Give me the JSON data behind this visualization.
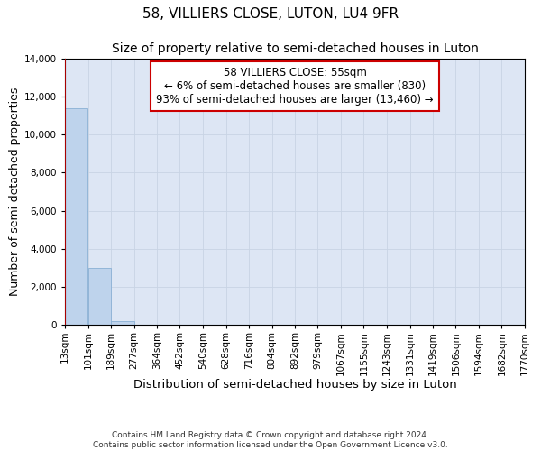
{
  "title": "58, VILLIERS CLOSE, LUTON, LU4 9FR",
  "subtitle": "Size of property relative to semi-detached houses in Luton",
  "xlabel": "Distribution of semi-detached houses by size in Luton",
  "ylabel": "Number of semi-detached properties",
  "footnote1": "Contains HM Land Registry data © Crown copyright and database right 2024.",
  "footnote2": "Contains public sector information licensed under the Open Government Licence v3.0.",
  "bin_edges": [
    13,
    101,
    189,
    277,
    364,
    452,
    540,
    628,
    716,
    804,
    892,
    979,
    1067,
    1155,
    1243,
    1331,
    1419,
    1506,
    1594,
    1682,
    1770
  ],
  "bin_labels": [
    "13sqm",
    "101sqm",
    "189sqm",
    "277sqm",
    "364sqm",
    "452sqm",
    "540sqm",
    "628sqm",
    "716sqm",
    "804sqm",
    "892sqm",
    "979sqm",
    "1067sqm",
    "1155sqm",
    "1243sqm",
    "1331sqm",
    "1419sqm",
    "1506sqm",
    "1594sqm",
    "1682sqm",
    "1770sqm"
  ],
  "bar_heights": [
    11400,
    3000,
    200,
    0,
    0,
    0,
    0,
    0,
    0,
    0,
    0,
    0,
    0,
    0,
    0,
    0,
    0,
    0,
    0,
    0
  ],
  "bar_color": "#bed3ec",
  "bar_edgecolor": "#8ab0d4",
  "ylim": [
    0,
    14000
  ],
  "yticks": [
    0,
    2000,
    4000,
    6000,
    8000,
    10000,
    12000,
    14000
  ],
  "property_value": 13,
  "property_label": "58 VILLIERS CLOSE: 55sqm",
  "annotation_line1": "← 6% of semi-detached houses are smaller (830)",
  "annotation_line2": "93% of semi-detached houses are larger (13,460) →",
  "annotation_box_color": "#cc0000",
  "red_line_color": "#cc0000",
  "background_color": "#ffffff",
  "grid_color": "#c8d4e4",
  "title_fontsize": 11,
  "subtitle_fontsize": 10,
  "axis_label_fontsize": 9,
  "tick_fontsize": 7.5,
  "annotation_fontsize": 8.5,
  "footnote_fontsize": 6.5
}
